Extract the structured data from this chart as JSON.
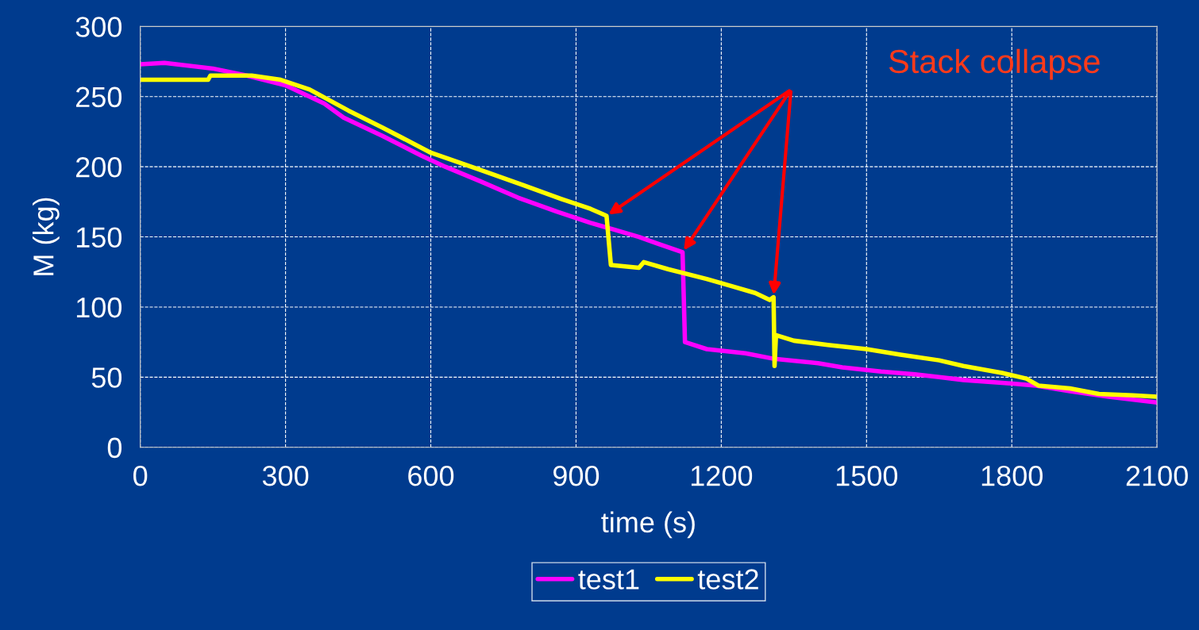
{
  "chart_data": {
    "type": "line",
    "xlabel": "time (s)",
    "ylabel": "M (kg)",
    "xlim": [
      0,
      2100
    ],
    "xticks": [
      0,
      300,
      600,
      900,
      1200,
      1500,
      1800,
      2100
    ],
    "ylim": [
      0,
      300
    ],
    "yticks": [
      0,
      50,
      100,
      150,
      200,
      250,
      300
    ],
    "grid": true,
    "legend": "bottom",
    "line_style": "solid",
    "marker": "none",
    "annotations": [
      "Stack collapse"
    ],
    "series": [
      {
        "name": "test1",
        "color": "#ff00ff",
        "x": [
          0,
          50,
          150,
          220,
          300,
          380,
          420,
          500,
          580,
          630,
          700,
          780,
          860,
          930,
          980,
          1030,
          1070,
          1120,
          1125,
          1170,
          1250,
          1310,
          1400,
          1450,
          1530,
          1600,
          1650,
          1700,
          1780,
          1850,
          1920,
          2000,
          2100
        ],
        "values": [
          273,
          274,
          270,
          265,
          258,
          245,
          235,
          222,
          208,
          200,
          190,
          178,
          168,
          160,
          155,
          150,
          145,
          139,
          75,
          70,
          67,
          63,
          60,
          57,
          54,
          52,
          50,
          48,
          46,
          44,
          40,
          36,
          32
        ]
      },
      {
        "name": "test2",
        "color": "#ffff00",
        "x": [
          0,
          140,
          145,
          230,
          290,
          350,
          430,
          500,
          600,
          700,
          790,
          870,
          930,
          963,
          972,
          1030,
          1040,
          1090,
          1170,
          1220,
          1270,
          1300,
          1308,
          1310,
          1313,
          1350,
          1420,
          1500,
          1570,
          1650,
          1700,
          1780,
          1830,
          1855,
          1920,
          1980,
          2050,
          2100
        ],
        "values": [
          262,
          262,
          265,
          265,
          262,
          255,
          240,
          228,
          210,
          198,
          187,
          177,
          170,
          165,
          130,
          128,
          132,
          127,
          120,
          115,
          110,
          105,
          107,
          58,
          80,
          76,
          73,
          70,
          66,
          62,
          58,
          53,
          49,
          44,
          42,
          38,
          37,
          36
        ]
      }
    ]
  }
}
